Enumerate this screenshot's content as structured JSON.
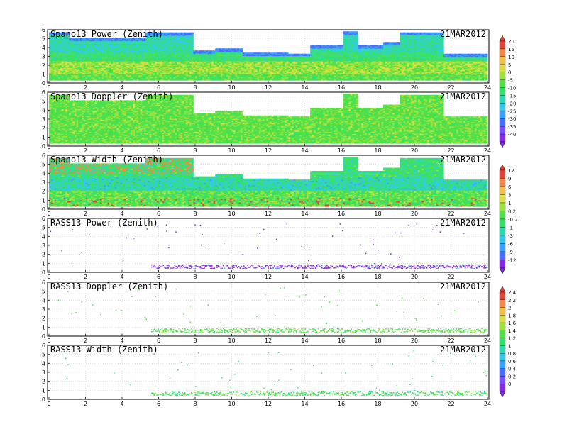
{
  "chart_data": [
    {
      "type": "heatmap",
      "title": "Spano13 Power (Zenith)",
      "date": "21MAR2012",
      "x_ticks": [
        "0",
        "2",
        "4",
        "6",
        "8",
        "10",
        "12",
        "14",
        "16",
        "18",
        "20",
        "22",
        "24"
      ],
      "y_ticks": [
        "0",
        "1",
        "2",
        "3",
        "4",
        "5",
        "6"
      ],
      "xlim": [
        0,
        24
      ],
      "ylim": [
        0,
        6
      ],
      "colorbar": "cb1"
    },
    {
      "type": "heatmap",
      "title": "Spano13 Doppler (Zenith)",
      "date": "21MAR2012",
      "x_ticks": [
        "0",
        "2",
        "4",
        "6",
        "8",
        "10",
        "12",
        "14",
        "16",
        "18",
        "20",
        "22",
        "24"
      ],
      "y_ticks": [
        "0",
        "1",
        "2",
        "3",
        "4",
        "5",
        "6"
      ],
      "xlim": [
        0,
        24
      ],
      "ylim": [
        0,
        6
      ],
      "colorbar": "cb1"
    },
    {
      "type": "heatmap",
      "title": "Spano13 Width (Zenith)",
      "date": "21MAR2012",
      "x_ticks": [
        "0",
        "2",
        "4",
        "6",
        "8",
        "10",
        "12",
        "14",
        "16",
        "18",
        "20",
        "22",
        "24"
      ],
      "y_ticks": [
        "0",
        "1",
        "2",
        "3",
        "4",
        "5",
        "6"
      ],
      "xlim": [
        0,
        24
      ],
      "ylim": [
        0,
        6
      ],
      "colorbar": "cb2"
    },
    {
      "type": "heatmap",
      "title": "RASS13 Power (Zenith)",
      "date": "21MAR2012",
      "x_ticks": [
        "0",
        "2",
        "4",
        "6",
        "8",
        "10",
        "12",
        "14",
        "16",
        "18",
        "20",
        "22",
        "24"
      ],
      "y_ticks": [
        "0",
        "1",
        "2",
        "3",
        "4",
        "5",
        "6"
      ],
      "xlim": [
        0,
        24
      ],
      "ylim": [
        0,
        6
      ],
      "colorbar": "cb2"
    },
    {
      "type": "heatmap",
      "title": "RASS13 Doppler (Zenith)",
      "date": "21MAR2012",
      "x_ticks": [
        "0",
        "2",
        "4",
        "6",
        "8",
        "10",
        "12",
        "14",
        "16",
        "18",
        "20",
        "22",
        "24"
      ],
      "y_ticks": [
        "0",
        "1",
        "2",
        "3",
        "4",
        "5",
        "6"
      ],
      "xlim": [
        0,
        24
      ],
      "ylim": [
        0,
        6
      ],
      "colorbar": "cb3"
    },
    {
      "type": "heatmap",
      "title": "RASS13 Width (Zenith)",
      "date": "21MAR2012",
      "x_ticks": [
        "0",
        "2",
        "4",
        "6",
        "8",
        "10",
        "12",
        "14",
        "16",
        "18",
        "20",
        "22",
        "24"
      ],
      "y_ticks": [
        "0",
        "1",
        "2",
        "3",
        "4",
        "5",
        "6"
      ],
      "xlim": [
        0,
        24
      ],
      "ylim": [
        0,
        6
      ],
      "colorbar": "cb3"
    }
  ],
  "colorbars": {
    "cb1": {
      "labels": [
        "20",
        "15",
        "10",
        "5",
        "0",
        "-5",
        "-10",
        "-15",
        "-20",
        "-25",
        "-30",
        "-35",
        "-40"
      ]
    },
    "cb2": {
      "labels": [
        "12",
        "9",
        "6",
        "3",
        "1",
        "0.2",
        "-0.2",
        "-1",
        "-3",
        "-6",
        "-9",
        "-12"
      ]
    },
    "cb3": {
      "labels": [
        "2.4",
        "2.2",
        "2",
        "1.8",
        "1.6",
        "1.4",
        "1.2",
        "1",
        "0.8",
        "0.6",
        "0.4",
        "0.2",
        "0"
      ]
    }
  },
  "colors": {
    "palette": [
      "#8a2be2",
      "#7b4dff",
      "#4b6bff",
      "#3aa0ff",
      "#33c9e8",
      "#2fd9b0",
      "#35e06a",
      "#4fe04a",
      "#9be33a",
      "#d8e045",
      "#f0c24a",
      "#f08a4a",
      "#e0453a"
    ],
    "panel_bg": "#ffffff",
    "grid": "#cfcfcf"
  }
}
